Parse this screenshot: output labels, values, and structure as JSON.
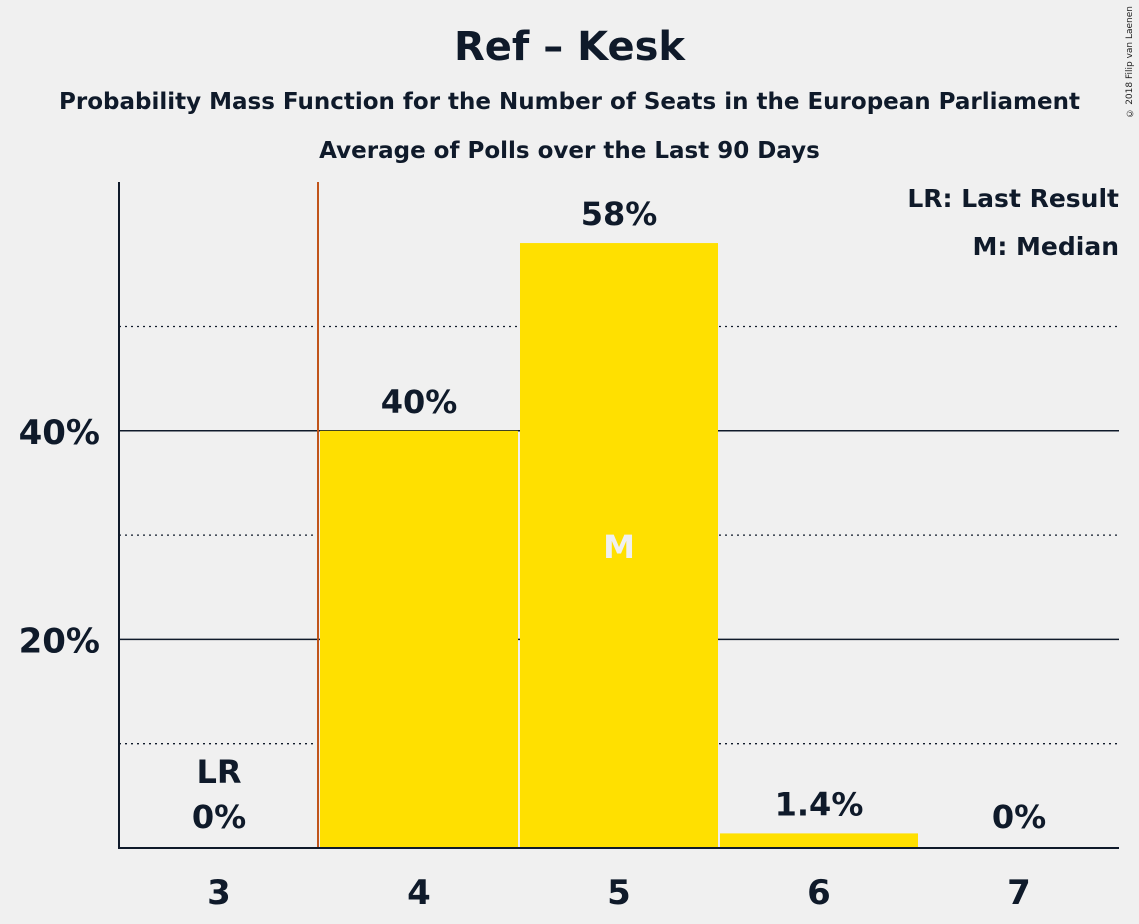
{
  "chart_data": {
    "type": "bar",
    "title": "Ref – Kesk",
    "subtitle": "Probability Mass Function for the Number of Seats in the European Parliament",
    "subtitle2": "Average of Polls over the Last 90 Days",
    "categories": [
      "3",
      "4",
      "5",
      "6",
      "7"
    ],
    "values": [
      0,
      40,
      58,
      1.4,
      0
    ],
    "value_labels": [
      "0%",
      "40%",
      "58%",
      "1.4%",
      "0%"
    ],
    "y_ticks": [
      {
        "value": 20,
        "label": "20%"
      },
      {
        "value": 40,
        "label": "40%"
      }
    ],
    "y_dotted_gridlines": [
      10,
      30,
      50
    ],
    "ylim": [
      0,
      64
    ],
    "last_result_category": "3",
    "last_result_marker_label": "LR",
    "median_category": "5",
    "median_marker_label": "M",
    "legend": [
      "LR: Last Result",
      "M: Median"
    ],
    "legend_position": "top-right",
    "copyright": "© 2018 Filip van Laenen",
    "colors": {
      "bar": "#ffe000",
      "background": "#f0f0f0",
      "text": "#0f1a2a",
      "last_result_line": "#c0541a",
      "median_label": "#f0f0f0"
    }
  }
}
